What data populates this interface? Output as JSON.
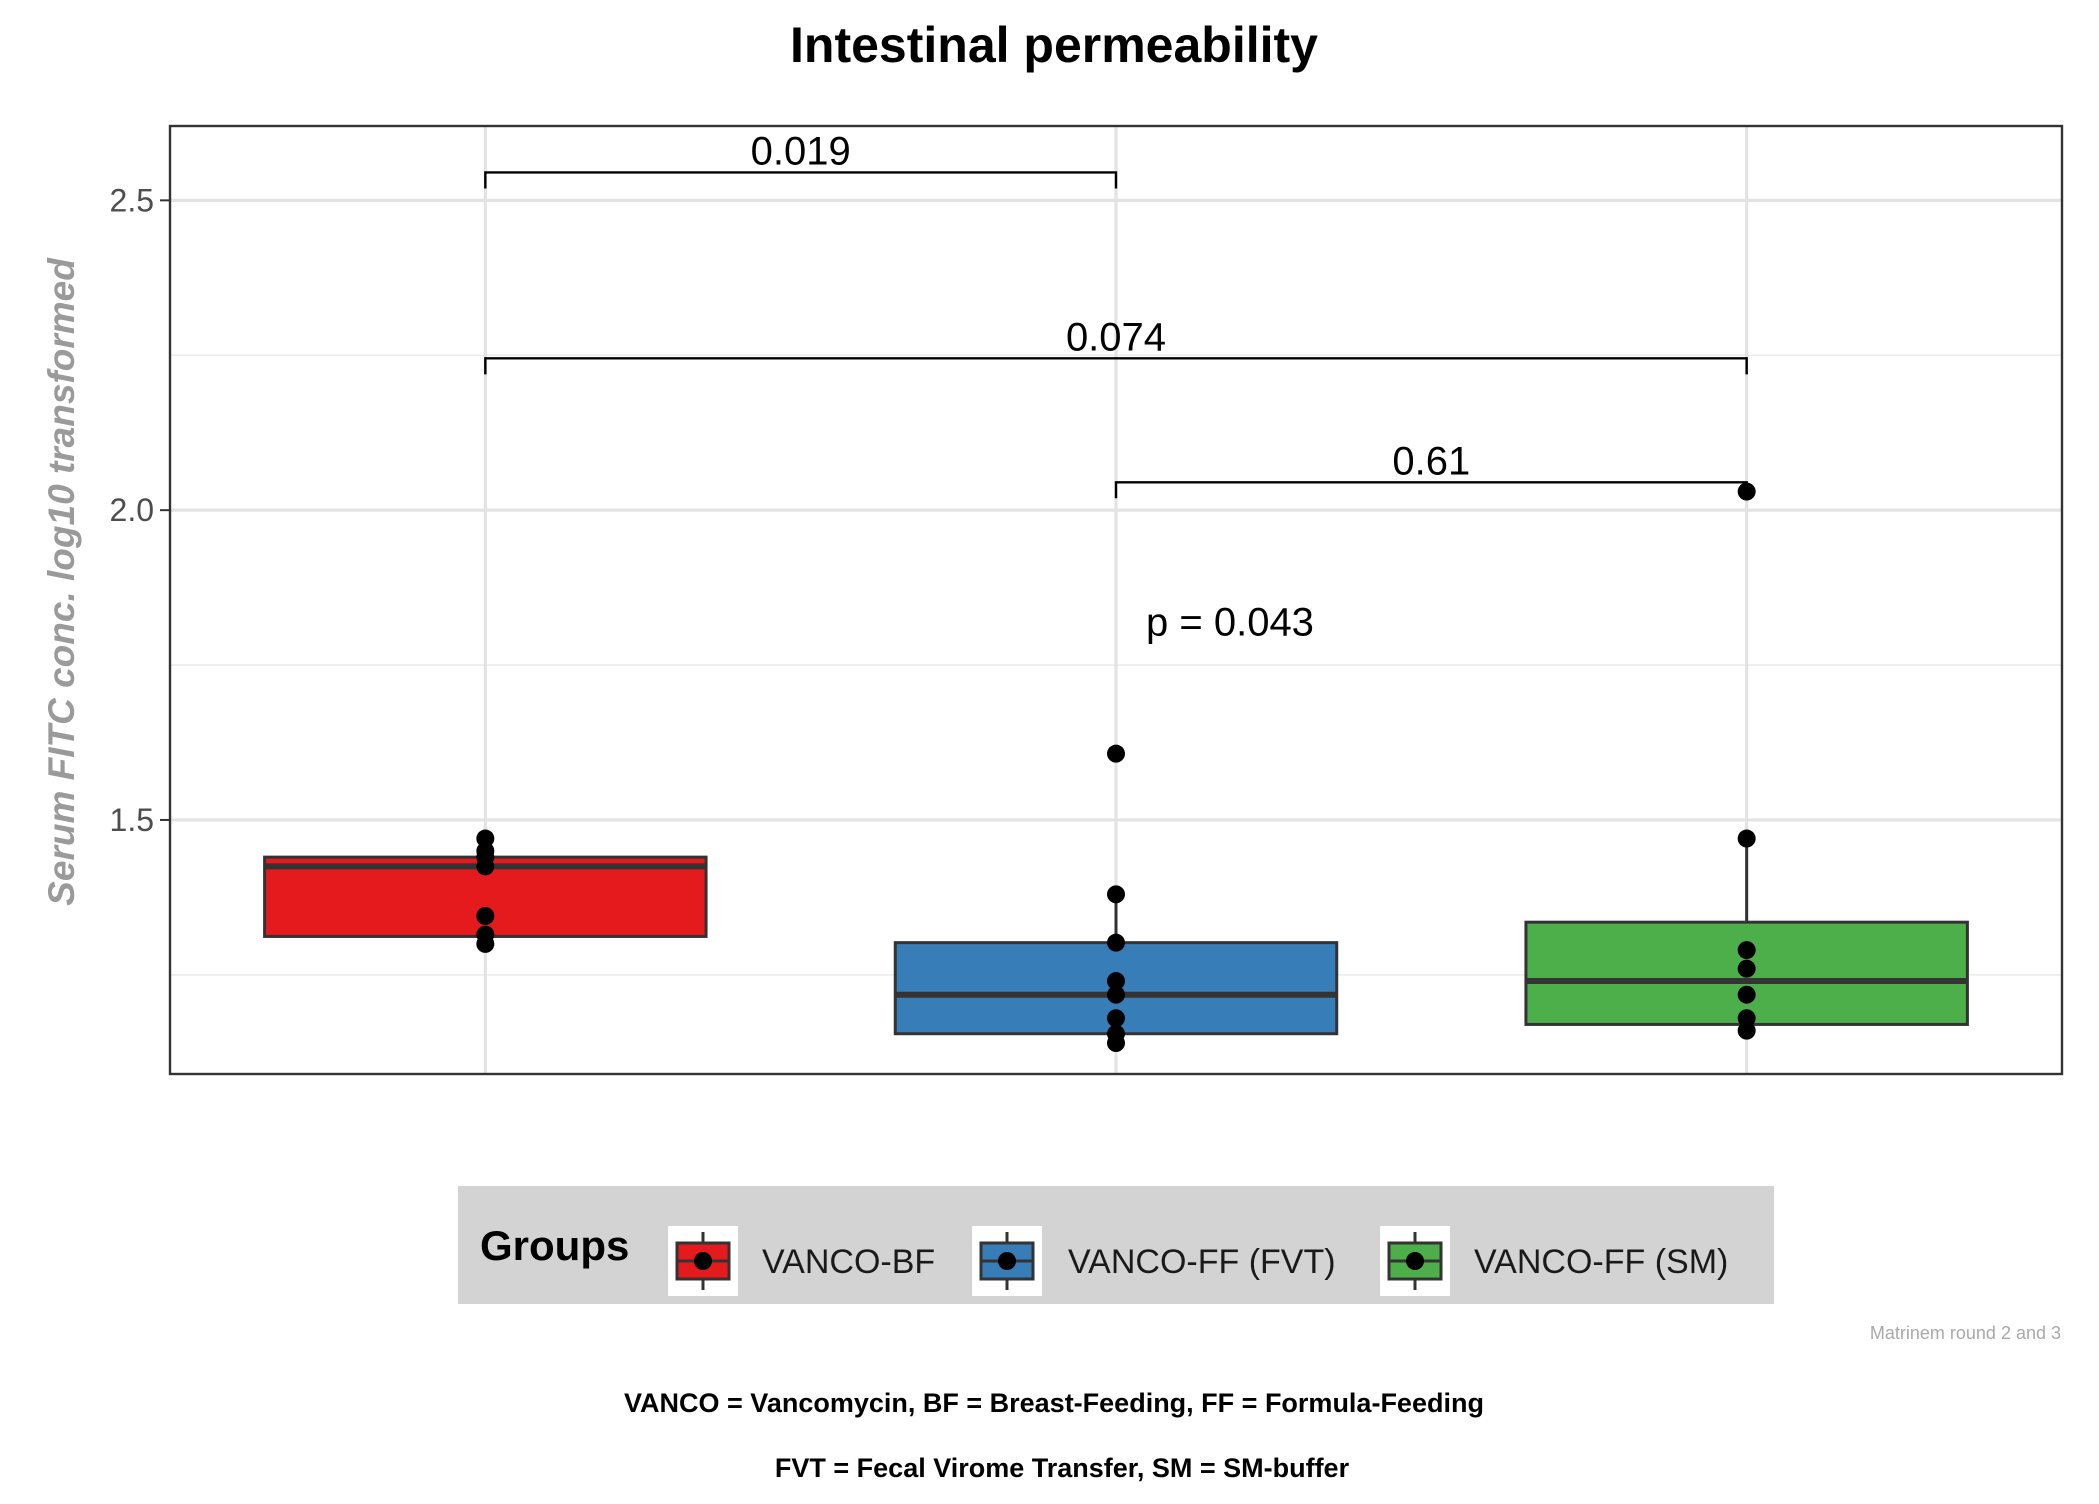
{
  "chart_data": {
    "type": "box",
    "title": "Intestinal permeability",
    "ylabel": "Serum FITC conc. log10 transformed",
    "xlabel": "",
    "ylim": [
      1.09,
      2.62
    ],
    "yticks": [
      1.5,
      2.0,
      2.5
    ],
    "ytick_labels": [
      "1.5",
      "2.0",
      "2.5"
    ],
    "grid": true,
    "legend": {
      "title": "Groups",
      "position": "bottom",
      "entries": [
        "VANCO-BF",
        "VANCO-FF (FVT)",
        "VANCO-FF (SM)"
      ]
    },
    "groups": [
      {
        "name": "VANCO-BF",
        "color": "#E41A1C",
        "q1": 1.312,
        "median": 1.425,
        "q3": 1.44,
        "whisker_low": 1.312,
        "whisker_high": 1.44,
        "points": [
          1.47,
          1.45,
          1.44,
          1.425,
          1.345,
          1.315,
          1.3
        ]
      },
      {
        "name": "VANCO-FF (FVT)",
        "color": "#377EB8",
        "q1": 1.155,
        "median": 1.218,
        "q3": 1.302,
        "whisker_low": 1.155,
        "whisker_high": 1.38,
        "points": [
          1.607,
          1.38,
          1.302,
          1.24,
          1.218,
          1.18,
          1.155,
          1.14
        ]
      },
      {
        "name": "VANCO-FF (SM)",
        "color": "#4DAF4A",
        "q1": 1.17,
        "median": 1.24,
        "q3": 1.335,
        "whisker_low": 1.17,
        "whisker_high": 1.47,
        "points": [
          2.03,
          1.47,
          1.29,
          1.26,
          1.218,
          1.18,
          1.16
        ]
      }
    ],
    "comparisons": [
      {
        "from": 0,
        "to": 1,
        "y": 2.545,
        "label": "0.019"
      },
      {
        "from": 0,
        "to": 2,
        "y": 2.245,
        "label": "0.074"
      },
      {
        "from": 1,
        "to": 2,
        "y": 2.045,
        "label": "0.61"
      }
    ],
    "global_test": {
      "label": "p = 0.043",
      "x_group": 1,
      "y": 1.82
    },
    "caption": "Matrinem round 2 and 3",
    "footnotes": [
      "VANCO = Vancomycin, BF = Breast-Feeding, FF = Formula-Feeding",
      "FVT = Fecal Virome Transfer, SM = SM-buffer"
    ]
  }
}
